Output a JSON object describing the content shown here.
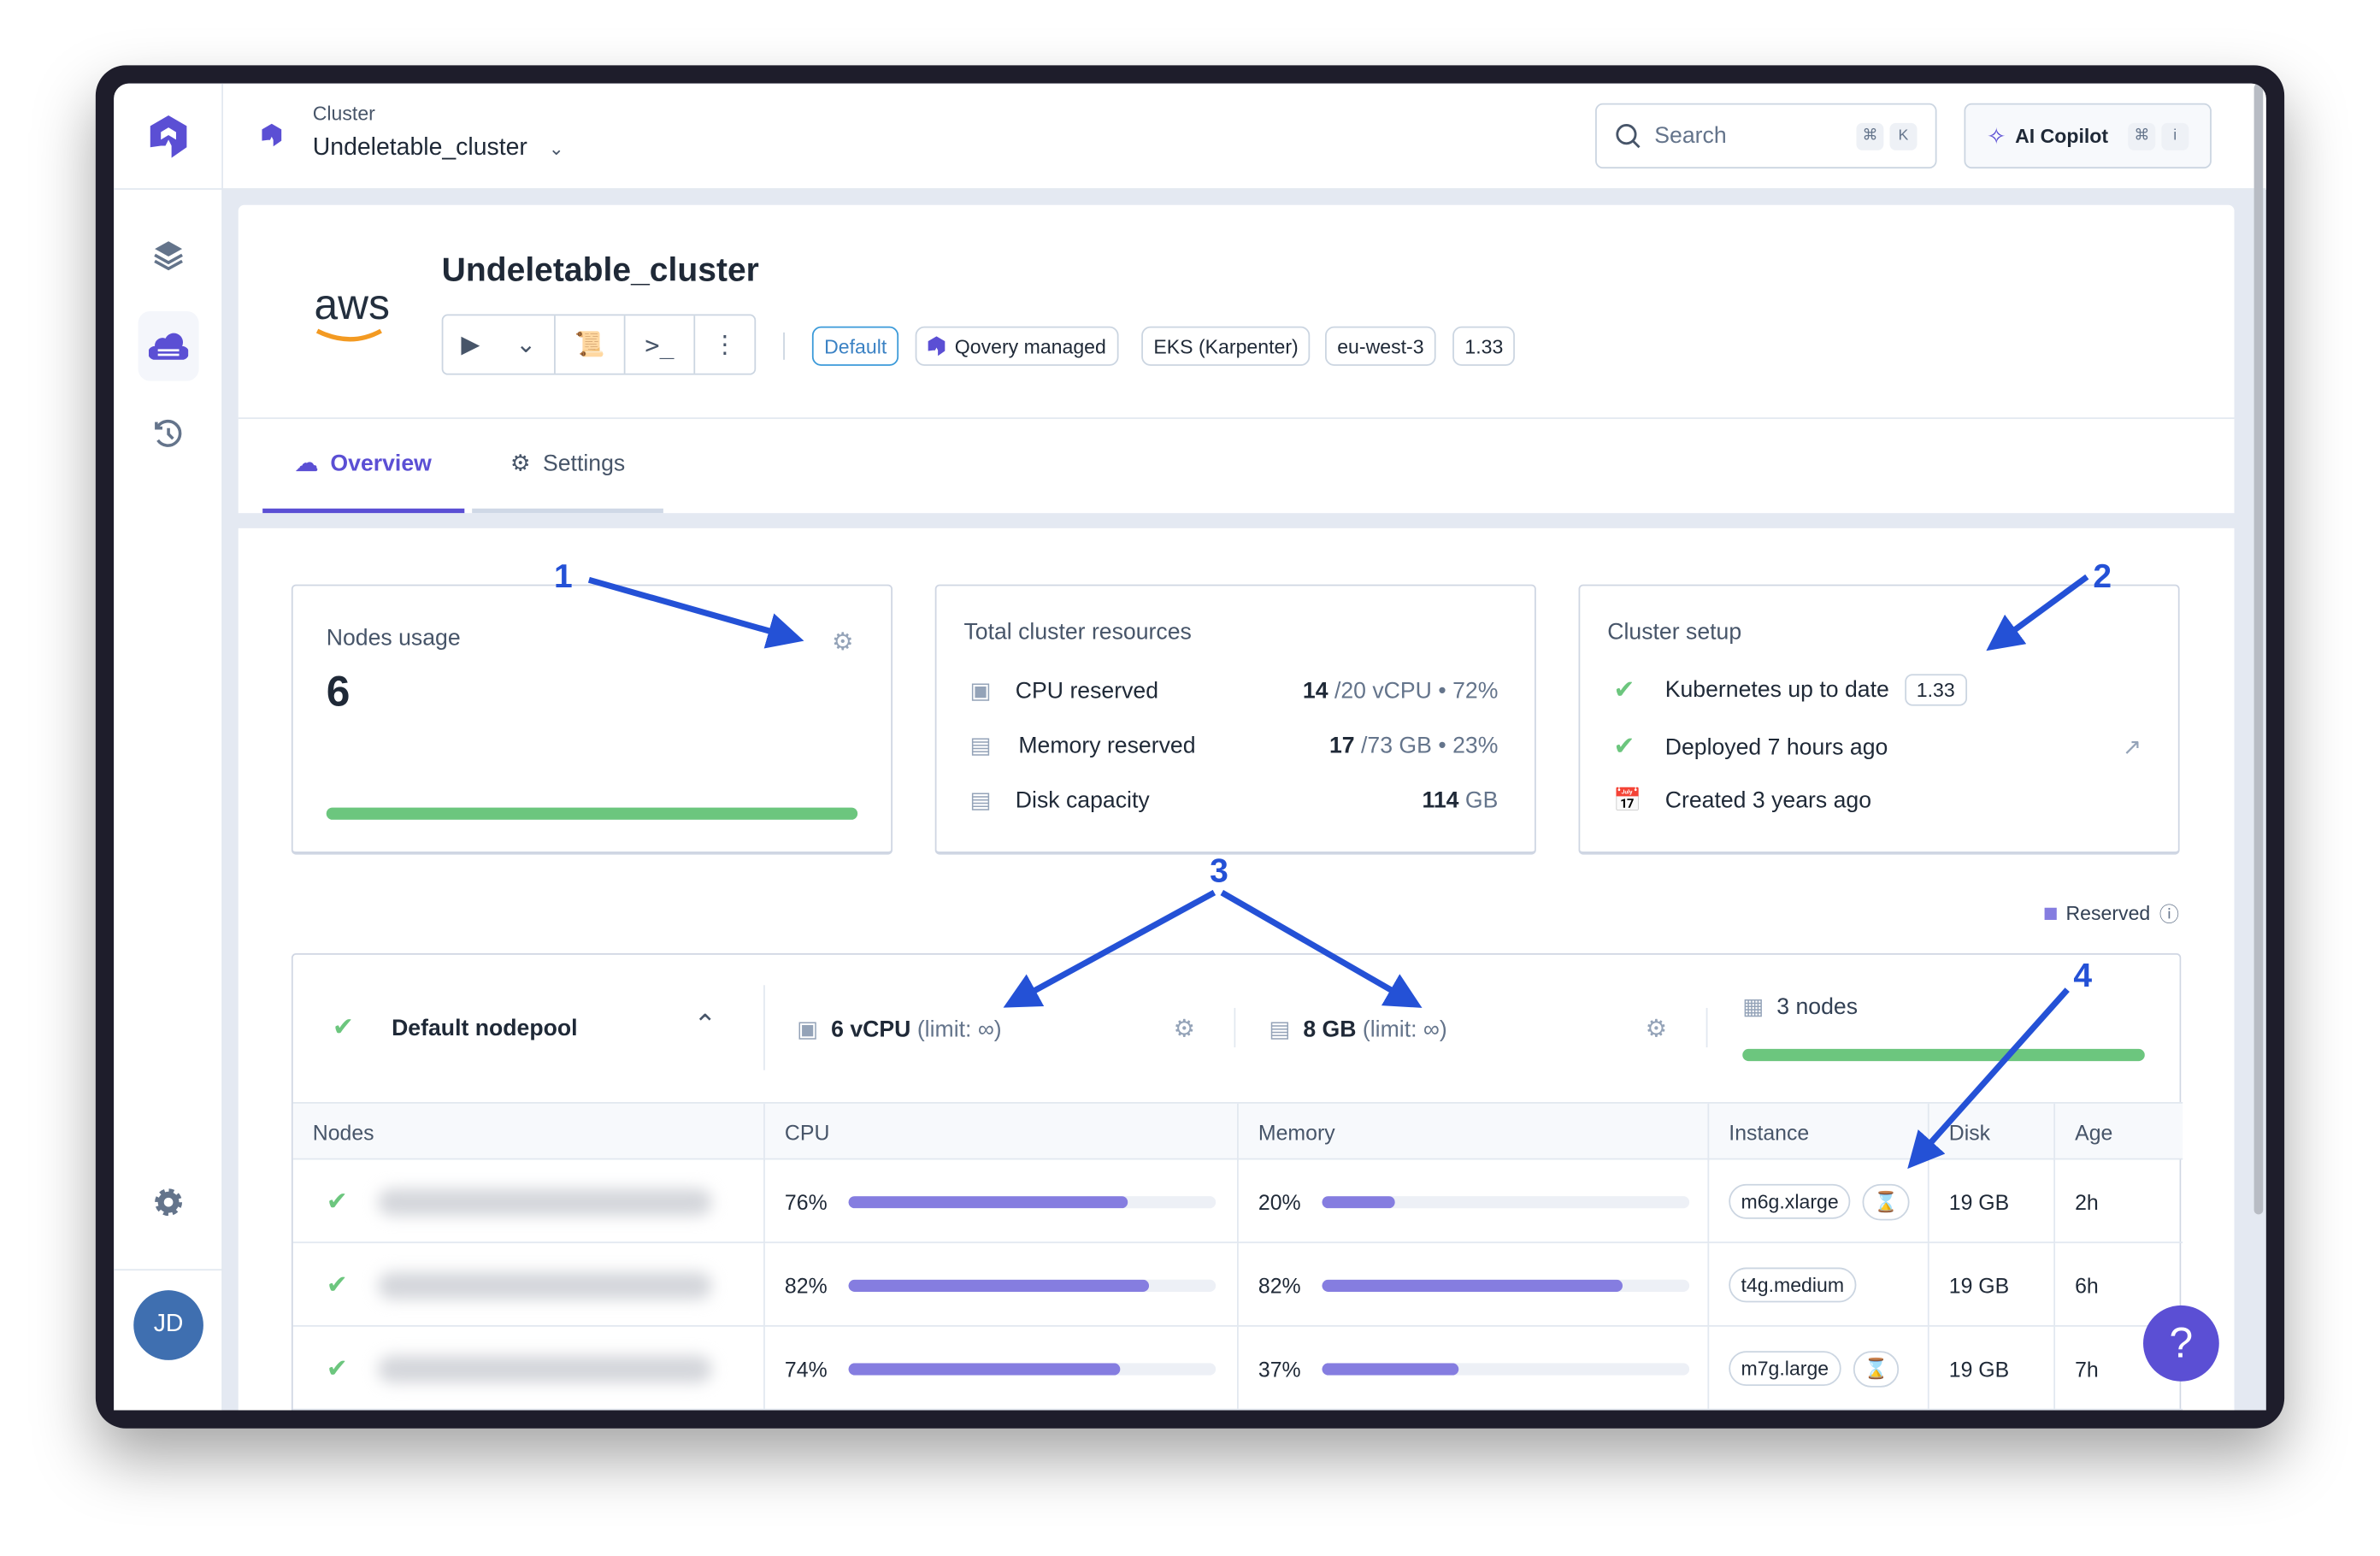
{
  "header": {
    "breadcrumb_label": "Cluster",
    "cluster_name": "Undeletable_cluster",
    "search_placeholder": "Search",
    "search_shortcut": [
      "⌘",
      "K"
    ],
    "copilot_label": "AI Copilot",
    "copilot_shortcut": [
      "⌘",
      "i"
    ]
  },
  "sidebar": {
    "avatar_initials": "JD",
    "items": [
      "environments",
      "clusters",
      "audit-logs",
      "settings"
    ],
    "active": "clusters"
  },
  "cluster": {
    "provider_logo": "aws",
    "title": "Undeletable_cluster",
    "badges": [
      "Default",
      "Qovery managed",
      "EKS (Karpenter)",
      "eu-west-3",
      "1.33"
    ]
  },
  "tabs": [
    {
      "label": "Overview",
      "active": true
    },
    {
      "label": "Settings",
      "active": false
    }
  ],
  "nodes_usage": {
    "title": "Nodes usage",
    "value": "6",
    "progress": 1.0
  },
  "resources": {
    "title": "Total cluster resources",
    "rows": [
      {
        "label": "CPU reserved",
        "value": "14",
        "total": "/20 vCPU",
        "sep": "•",
        "pct": "72%"
      },
      {
        "label": "Memory reserved",
        "value": "17",
        "total": "/73 GB",
        "sep": "•",
        "pct": "23%"
      },
      {
        "label": "Disk capacity",
        "value": "114",
        "total": "GB",
        "sep": "",
        "pct": ""
      }
    ]
  },
  "setup": {
    "title": "Cluster setup",
    "k8s": "Kubernetes up to date",
    "k8s_version": "1.33",
    "deployed": "Deployed 7 hours ago",
    "created": "Created 3 years ago"
  },
  "legend": {
    "reserved": "Reserved",
    "color": "#857de0"
  },
  "nodepool": {
    "name": "Default nodepool",
    "cpu": "6 vCPU",
    "cpu_limit": "(limit: ∞)",
    "memory": "8 GB",
    "memory_limit": "(limit: ∞)",
    "nodes": "3 nodes",
    "nodes_progress": 1.0,
    "columns": [
      "Nodes",
      "CPU",
      "Memory",
      "Instance",
      "Disk",
      "Age"
    ],
    "rows": [
      {
        "cpu": "76%",
        "cpu_v": 76,
        "mem": "20%",
        "mem_v": 20,
        "instance": "m6g.xlarge",
        "spot": true,
        "disk": "19 GB",
        "age": "2h"
      },
      {
        "cpu": "82%",
        "cpu_v": 82,
        "mem": "82%",
        "mem_v": 82,
        "instance": "t4g.medium",
        "spot": false,
        "disk": "19 GB",
        "age": "6h"
      },
      {
        "cpu": "74%",
        "cpu_v": 74,
        "mem": "37%",
        "mem_v": 37,
        "instance": "m7g.large",
        "spot": true,
        "disk": "19 GB",
        "age": "7h"
      }
    ]
  },
  "annotations": [
    "1",
    "2",
    "3",
    "4"
  ],
  "help_label": "?",
  "colors": {
    "brand": "#5b4fd4",
    "success": "#6cc67e",
    "annotation": "#2451d6"
  }
}
